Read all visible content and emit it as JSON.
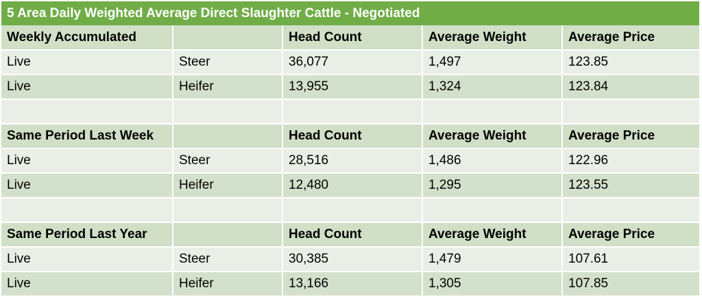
{
  "title": "5 Area Daily Weighted Average Direct Slaughter Cattle - Negotiated",
  "columns": {
    "head_count": "Head Count",
    "average_weight": "Average Weight",
    "average_price": "Average Price"
  },
  "sections": [
    {
      "label": "Weekly Accumulated",
      "rows": [
        {
          "type": "Live",
          "class": "Steer",
          "head_count": "36,077",
          "average_weight": "1,497",
          "average_price": "123.85"
        },
        {
          "type": "Live",
          "class": "Heifer",
          "head_count": "13,955",
          "average_weight": "1,324",
          "average_price": "123.84"
        }
      ]
    },
    {
      "label": "Same Period Last Week",
      "rows": [
        {
          "type": "Live",
          "class": "Steer",
          "head_count": "28,516",
          "average_weight": "1,486",
          "average_price": "122.96"
        },
        {
          "type": "Live",
          "class": "Heifer",
          "head_count": "12,480",
          "average_weight": "1,295",
          "average_price": "123.55"
        }
      ]
    },
    {
      "label": "Same Period Last Year",
      "rows": [
        {
          "type": "Live",
          "class": "Steer",
          "head_count": "30,385",
          "average_weight": "1,479",
          "average_price": "107.61"
        },
        {
          "type": "Live",
          "class": "Heifer",
          "head_count": "13,166",
          "average_weight": "1,305",
          "average_price": "107.85"
        }
      ]
    }
  ],
  "colors": {
    "title_bg": "#70ad47",
    "header_bg": "#d0dfc6",
    "row_light": "#e9efe6",
    "row_dark": "#d3e0cb"
  }
}
